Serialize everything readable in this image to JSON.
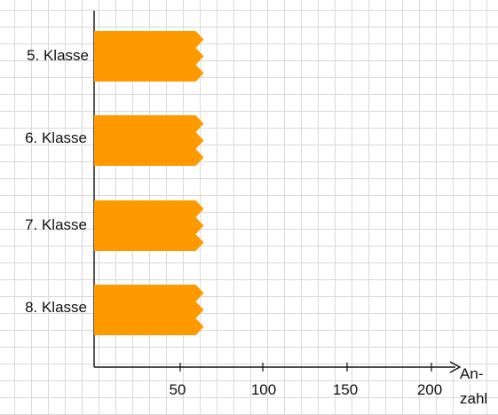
{
  "chart_data": {
    "type": "bar",
    "orientation": "horizontal",
    "categories": [
      "5. Klasse",
      "6. Klasse",
      "7. Klasse",
      "8. Klasse"
    ],
    "values": [
      65,
      65,
      65,
      65
    ],
    "broken_bars": true,
    "x_ticks": [
      "50",
      "100",
      "150",
      "200"
    ],
    "xlim": [
      0,
      210
    ],
    "xlabel_line1": "An-",
    "xlabel_line2": "zahl",
    "grid": true,
    "bar_color": "#ff9900",
    "axis_color": "#111111",
    "grid_color": "#d9d9d9"
  }
}
